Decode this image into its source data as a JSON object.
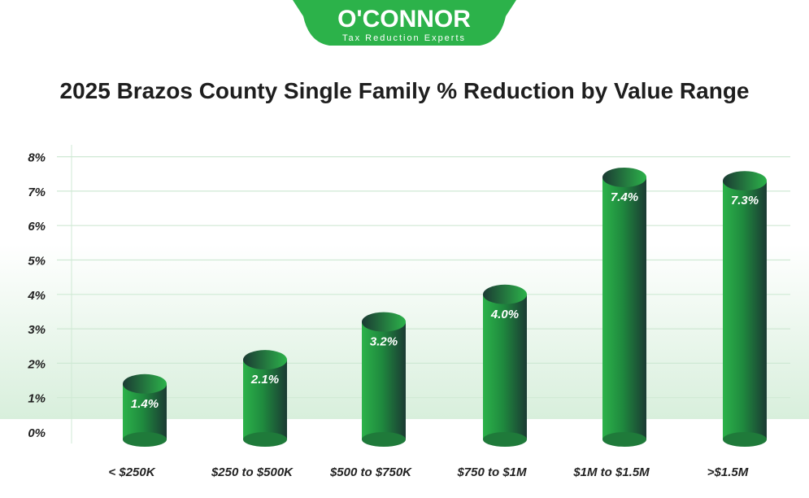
{
  "logo": {
    "name": "O'CONNOR",
    "tagline": "Tax Reduction Experts",
    "color": "#2cb24a"
  },
  "chart_data": {
    "type": "bar",
    "title": "2025 Brazos County Single Family % Reduction by Value Range",
    "categories": [
      "< $250K",
      "$250 to $500K",
      "$500 to $750K",
      "$750 to $1M",
      "$1M to $1.5M",
      ">$1.5M"
    ],
    "values": [
      1.4,
      2.1,
      3.2,
      4.0,
      7.4,
      7.3
    ],
    "data_labels": [
      "1.4%",
      "2.1%",
      "3.2%",
      "4.0%",
      "7.4%",
      "7.3%"
    ],
    "yticks": [
      "0%",
      "1%",
      "2%",
      "3%",
      "4%",
      "5%",
      "6%",
      "7%",
      "8%"
    ],
    "ylim": [
      0,
      8
    ],
    "grid": true,
    "bar_style": "3d-cylinder",
    "colors": {
      "bar_light": "#2cb24a",
      "bar_dark": "#1b3a33",
      "grid": "#cfe9d4"
    }
  }
}
